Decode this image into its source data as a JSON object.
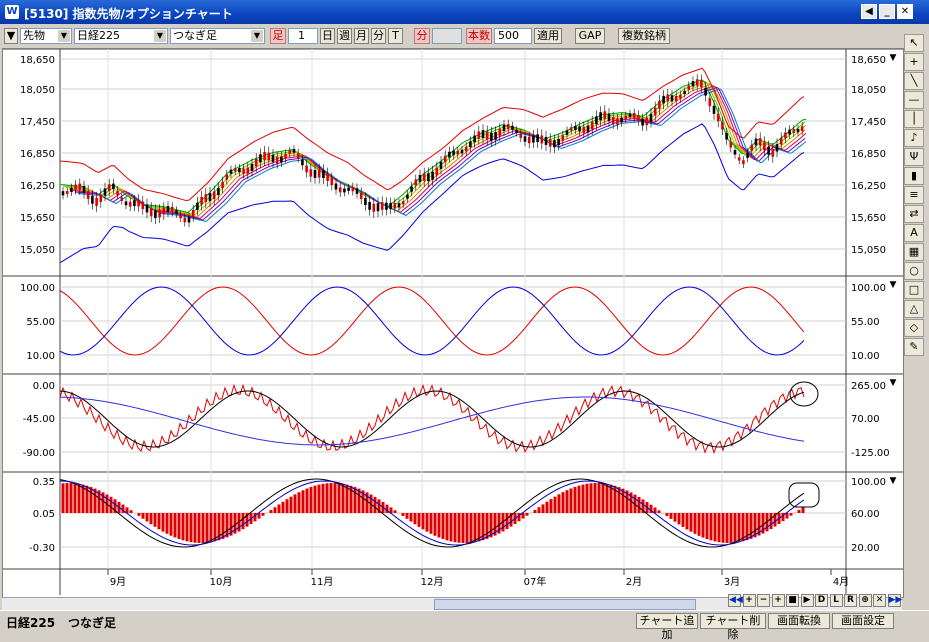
{
  "window": {
    "title": "[5130] 指数先物/オプションチャート"
  },
  "toolbar": {
    "type_select": "先物",
    "index_select": "日経225",
    "contract_select": "つなぎ足",
    "ashi_label": "足",
    "ashi_value": "1",
    "periods": [
      "日",
      "週",
      "月",
      "分",
      "T"
    ],
    "fun_label": "分",
    "honsu_label": "本数",
    "honsu_value": "500",
    "apply_label": "適用",
    "gap_label": "GAP",
    "multi_label": "複数銘柄"
  },
  "panels": {
    "price": {
      "left_ticks": [
        "18,650",
        "18,050",
        "17,450",
        "16,850",
        "16,250",
        "15,650",
        "15,050"
      ],
      "right_ticks": [
        "18,650",
        "18,050",
        "17,450",
        "16,850",
        "16,250",
        "15,650",
        "15,050"
      ]
    },
    "oscillator1": {
      "left_ticks": [
        "100.00",
        "55.00",
        "10.00"
      ],
      "right_ticks": [
        "100.00",
        "55.00",
        "10.00"
      ]
    },
    "oscillator2": {
      "left_ticks": [
        "0.00",
        "-45.00",
        "-90.00"
      ],
      "right_ticks": [
        "265.00",
        "70.00",
        "-125.00"
      ]
    },
    "oscillator3": {
      "left_ticks": [
        "0.35",
        "0.05",
        "-0.30"
      ],
      "right_ticks": [
        "100.00",
        "60.00",
        "20.00"
      ]
    }
  },
  "x_axis": {
    "labels": [
      "9月",
      "10月",
      "11月",
      "12月",
      "07年",
      "2月",
      "3月",
      "4月"
    ]
  },
  "nav_buttons": [
    "◀◀",
    "+",
    "−",
    "+",
    "■",
    "▶",
    "D",
    "L",
    "R",
    "⊕",
    "✕",
    "▶▶"
  ],
  "statusbar": {
    "index": "日経225",
    "contract": "つなぎ足",
    "buttons": [
      "チャート追加",
      "チャート削除",
      "画面転換",
      "画面設定"
    ]
  },
  "icons": [
    "cursor-icon",
    "crosshair-icon",
    "diagonal-line-icon",
    "horizontal-line-icon",
    "vertical-line-icon",
    "bell-icon",
    "fork-icon",
    "candle-icon",
    "fibonacci-icon",
    "cycle-icon",
    "text-icon",
    "grid-icon",
    "ellipse-icon",
    "rectangle-icon",
    "triangle-icon",
    "eraser-icon",
    "paint-icon"
  ],
  "colors": {
    "up": "#e00000",
    "down": "#000000",
    "band_upper": "#e00000",
    "band_lower": "#0000e0",
    "histogram": "#e00000"
  }
}
